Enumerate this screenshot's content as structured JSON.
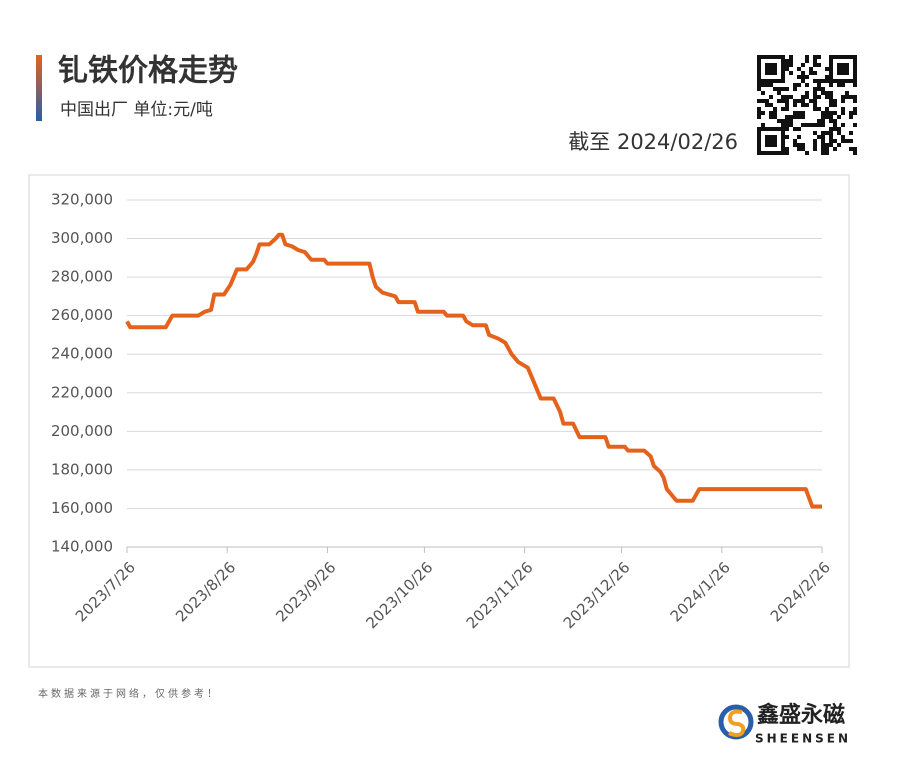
{
  "header": {
    "title": "钆铁价格走势",
    "subtitle": "中国出厂 单位:元/吨",
    "as_of": "截至 2024/02/26"
  },
  "footer": {
    "note": "本数据来源于网络，仅供参考！",
    "brand": "鑫盛永磁",
    "brand_en": "SHEENSEN"
  },
  "chart_data": {
    "type": "line",
    "x": [
      "2023-07-26",
      "2023-07-27",
      "2023-08-07",
      "2023-08-09",
      "2023-08-17",
      "2023-08-19",
      "2023-08-21",
      "2023-08-22",
      "2023-08-25",
      "2023-08-27",
      "2023-08-29",
      "2023-09-01",
      "2023-09-03",
      "2023-09-04",
      "2023-09-05",
      "2023-09-08",
      "2023-09-10",
      "2023-09-11",
      "2023-09-12",
      "2023-09-13",
      "2023-09-15",
      "2023-09-17",
      "2023-09-19",
      "2023-09-21",
      "2023-09-25",
      "2023-09-26",
      "2023-10-09",
      "2023-10-10",
      "2023-10-11",
      "2023-10-13",
      "2023-10-17",
      "2023-10-18",
      "2023-10-23",
      "2023-10-24",
      "2023-11-01",
      "2023-11-02",
      "2023-11-07",
      "2023-11-08",
      "2023-11-10",
      "2023-11-14",
      "2023-11-15",
      "2023-11-18",
      "2023-11-20",
      "2023-11-22",
      "2023-11-24",
      "2023-11-26",
      "2023-11-27",
      "2023-11-29",
      "2023-12-01",
      "2023-12-05",
      "2023-12-07",
      "2023-12-08",
      "2023-12-11",
      "2023-12-13",
      "2023-12-21",
      "2023-12-22",
      "2023-12-27",
      "2023-12-28",
      "2024-01-02",
      "2024-01-04",
      "2024-01-05",
      "2024-01-07",
      "2024-01-08",
      "2024-01-09",
      "2024-01-10",
      "2024-01-12",
      "2024-01-17",
      "2024-01-19",
      "2024-02-21",
      "2024-02-23",
      "2024-02-26"
    ],
    "series": [
      {
        "color": "#e4621b",
        "values": [
          257000,
          254000,
          254000,
          260000,
          260000,
          262000,
          263000,
          271000,
          271000,
          276000,
          284000,
          284000,
          288000,
          292000,
          297000,
          297000,
          300000,
          302000,
          302000,
          297000,
          296000,
          294000,
          293000,
          289000,
          289000,
          287000,
          287000,
          280000,
          275000,
          272000,
          270000,
          267000,
          267000,
          262000,
          262000,
          260000,
          260000,
          257000,
          255000,
          255000,
          250000,
          248000,
          246000,
          240000,
          236000,
          234000,
          233000,
          225000,
          217000,
          217000,
          210000,
          204000,
          204000,
          197000,
          197000,
          192000,
          192000,
          190000,
          190000,
          187000,
          182000,
          179000,
          176000,
          170000,
          168000,
          164000,
          164000,
          170000,
          170000,
          161000,
          161000
        ]
      }
    ],
    "xlim": [
      "2023-07-26",
      "2024-02-26"
    ],
    "xticks": [
      {
        "value": "2023-07-26",
        "label": "2023/7/26"
      },
      {
        "value": "2023-08-26",
        "label": "2023/8/26"
      },
      {
        "value": "2023-09-26",
        "label": "2023/9/26"
      },
      {
        "value": "2023-10-26",
        "label": "2023/10/26"
      },
      {
        "value": "2023-11-26",
        "label": "2023/11/26"
      },
      {
        "value": "2023-12-26",
        "label": "2023/12/26"
      },
      {
        "value": "2024-01-26",
        "label": "2024/1/26"
      },
      {
        "value": "2024-02-26",
        "label": "2024/2/26"
      }
    ],
    "ylim": [
      140000,
      320000
    ],
    "yticks": [
      {
        "value": 140000,
        "label": "140,000"
      },
      {
        "value": 160000,
        "label": "160,000"
      },
      {
        "value": 180000,
        "label": "180,000"
      },
      {
        "value": 200000,
        "label": "200,000"
      },
      {
        "value": 220000,
        "label": "220,000"
      },
      {
        "value": 240000,
        "label": "240,000"
      },
      {
        "value": 260000,
        "label": "260,000"
      },
      {
        "value": 280000,
        "label": "280,000"
      },
      {
        "value": 300000,
        "label": "300,000"
      },
      {
        "value": 320000,
        "label": "320,000"
      }
    ],
    "grid": true
  }
}
